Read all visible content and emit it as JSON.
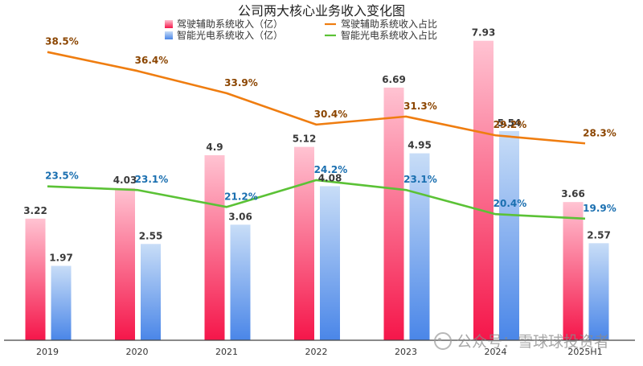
{
  "chart_data": {
    "type": "bar",
    "title": "公司两大核心业务收入变化图",
    "categories": [
      "2019",
      "2020",
      "2021",
      "2022",
      "2023",
      "2024",
      "2025H1"
    ],
    "series": [
      {
        "name": "驾驶辅助系统收入（亿）",
        "kind": "bar",
        "axis": "left",
        "values": [
          3.22,
          4.03,
          4.9,
          5.12,
          6.69,
          7.93,
          3.66
        ],
        "labels": [
          "3.22",
          "4.03",
          "4.9",
          "5.12",
          "6.69",
          "7.93",
          "3.66"
        ]
      },
      {
        "name": "智能光电系统收入（亿）",
        "kind": "bar",
        "axis": "left",
        "values": [
          1.97,
          2.55,
          3.06,
          4.08,
          4.95,
          5.54,
          2.57
        ],
        "labels": [
          "1.97",
          "2.55",
          "3.06",
          "4.08",
          "4.95",
          "5.54",
          "2.57"
        ]
      },
      {
        "name": "驾驶辅助系统收入占比",
        "kind": "line",
        "axis": "right",
        "values": [
          38.5,
          36.4,
          33.9,
          30.4,
          31.3,
          29.2,
          28.3
        ],
        "labels": [
          "38.5%",
          "36.4%",
          "33.9%",
          "30.4%",
          "31.3%",
          "29.2%",
          "28.3%"
        ]
      },
      {
        "name": "智能光电系统收入占比",
        "kind": "line",
        "axis": "right",
        "values": [
          23.5,
          23.1,
          21.2,
          24.2,
          23.1,
          20.4,
          19.9
        ],
        "labels": [
          "23.5%",
          "23.1%",
          "21.2%",
          "24.2%",
          "23.1%",
          "20.4%",
          "19.9%"
        ]
      }
    ],
    "ylim_left": [
      0,
      8.2
    ],
    "ylim_right": [
      10,
      40
    ],
    "legend": "top-center",
    "grid": false,
    "colors": {
      "bar1_top": "#ffc3d2",
      "bar1_bottom": "#f5164a",
      "bar2_top": "#c8ddf7",
      "bar2_bottom": "#4a86e8",
      "line1": "#ef7d10",
      "line2": "#5bc236",
      "line1_label": "#8b4500",
      "line2_label": "#1a6fb0",
      "axis": "#444444"
    }
  },
  "watermark": {
    "text": "公众号：雪球球投资者"
  }
}
